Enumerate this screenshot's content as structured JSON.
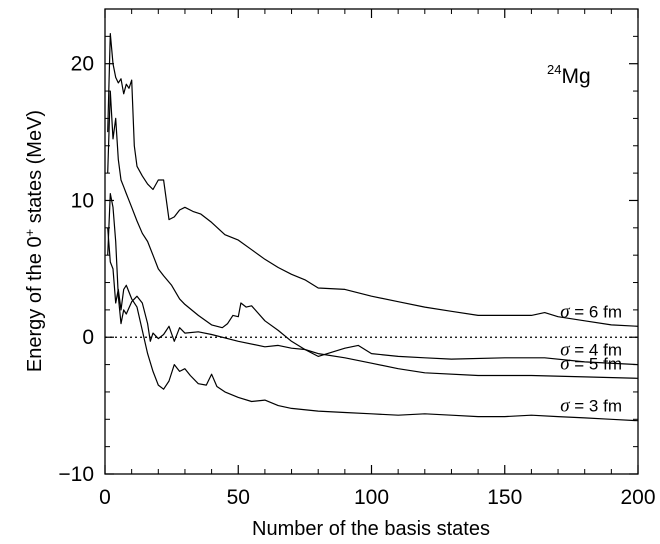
{
  "chart_data": {
    "type": "line",
    "title": "",
    "xlabel": "Number of the basis states",
    "ylabel_parts": {
      "pre": "Energy of the 0",
      "sup": "+",
      "post": " states (MeV)"
    },
    "nucleus": {
      "mass": "24",
      "symbol": "Mg"
    },
    "xlim": [
      0,
      200
    ],
    "ylim": [
      -10,
      24
    ],
    "xticks": [
      0,
      50,
      100,
      150,
      200
    ],
    "yticks": [
      -10,
      0,
      10,
      20
    ],
    "ytick_labels": [
      "−10",
      "0",
      "10",
      "20"
    ],
    "reference_line": {
      "y": 0,
      "style": "dotted"
    },
    "series": [
      {
        "name": "σ = 6 fm",
        "points": [
          [
            1,
            15
          ],
          [
            2,
            22.2
          ],
          [
            3,
            20
          ],
          [
            4,
            19
          ],
          [
            5,
            18.6
          ],
          [
            6,
            18.9
          ],
          [
            7,
            17.8
          ],
          [
            8,
            18.5
          ],
          [
            9,
            18.2
          ],
          [
            10,
            18.8
          ],
          [
            11,
            14
          ],
          [
            12,
            12.5
          ],
          [
            14,
            11.8
          ],
          [
            16,
            11.2
          ],
          [
            18,
            10.8
          ],
          [
            20,
            11.5
          ],
          [
            22,
            11.5
          ],
          [
            24,
            8.6
          ],
          [
            26,
            8.8
          ],
          [
            28,
            9.3
          ],
          [
            30,
            9.5
          ],
          [
            33,
            9.2
          ],
          [
            36,
            9
          ],
          [
            40,
            8.4
          ],
          [
            45,
            7.5
          ],
          [
            50,
            7.1
          ],
          [
            55,
            6.4
          ],
          [
            60,
            5.7
          ],
          [
            65,
            5.1
          ],
          [
            70,
            4.6
          ],
          [
            75,
            4.2
          ],
          [
            80,
            3.6
          ],
          [
            90,
            3.5
          ],
          [
            100,
            3
          ],
          [
            110,
            2.6
          ],
          [
            120,
            2.2
          ],
          [
            130,
            1.9
          ],
          [
            140,
            1.6
          ],
          [
            150,
            1.6
          ],
          [
            160,
            1.6
          ],
          [
            165,
            1.8
          ],
          [
            170,
            1.5
          ],
          [
            180,
            1.2
          ],
          [
            190,
            0.9
          ],
          [
            200,
            0.8
          ]
        ]
      },
      {
        "name": "σ = 5 fm",
        "points": [
          [
            1,
            12
          ],
          [
            2,
            18
          ],
          [
            3,
            14.5
          ],
          [
            4,
            16
          ],
          [
            5,
            13
          ],
          [
            6,
            11.5
          ],
          [
            7,
            11
          ],
          [
            8,
            10.5
          ],
          [
            10,
            9.5
          ],
          [
            12,
            8.5
          ],
          [
            14,
            7.6
          ],
          [
            16,
            7
          ],
          [
            18,
            6
          ],
          [
            20,
            5
          ],
          [
            22,
            4.5
          ],
          [
            25,
            3.8
          ],
          [
            28,
            2.8
          ],
          [
            30,
            2.4
          ],
          [
            35,
            1.6
          ],
          [
            40,
            0.9
          ],
          [
            44,
            0.7
          ],
          [
            46,
            1
          ],
          [
            48,
            1.6
          ],
          [
            50,
            1.5
          ],
          [
            51,
            2.5
          ],
          [
            53,
            2.2
          ],
          [
            55,
            2.3
          ],
          [
            60,
            1.2
          ],
          [
            65,
            0.5
          ],
          [
            70,
            -0.3
          ],
          [
            75,
            -0.9
          ],
          [
            80,
            -1.2
          ],
          [
            90,
            -1.5
          ],
          [
            100,
            -1.9
          ],
          [
            110,
            -2.3
          ],
          [
            120,
            -2.6
          ],
          [
            140,
            -2.8
          ],
          [
            160,
            -2.8
          ],
          [
            180,
            -2.9
          ],
          [
            200,
            -3
          ]
        ]
      },
      {
        "name": "σ = 4 fm",
        "points": [
          [
            1,
            6
          ],
          [
            2,
            10.5
          ],
          [
            3,
            9.5
          ],
          [
            4,
            7
          ],
          [
            5,
            3
          ],
          [
            6,
            1
          ],
          [
            7,
            2
          ],
          [
            8,
            1.7
          ],
          [
            10,
            2.6
          ],
          [
            12,
            3
          ],
          [
            14,
            2.5
          ],
          [
            16,
            1
          ],
          [
            17,
            -0.3
          ],
          [
            18,
            0.3
          ],
          [
            20,
            -0.1
          ],
          [
            22,
            0.2
          ],
          [
            24,
            0.8
          ],
          [
            26,
            -0.3
          ],
          [
            28,
            0.7
          ],
          [
            30,
            0.3
          ],
          [
            35,
            0.4
          ],
          [
            40,
            0.2
          ],
          [
            50,
            -0.3
          ],
          [
            60,
            -0.7
          ],
          [
            65,
            -0.6
          ],
          [
            70,
            -0.8
          ],
          [
            75,
            -0.9
          ],
          [
            80,
            -1.4
          ],
          [
            85,
            -1.1
          ],
          [
            90,
            -0.8
          ],
          [
            95,
            -0.6
          ],
          [
            100,
            -1.2
          ],
          [
            110,
            -1.4
          ],
          [
            120,
            -1.5
          ],
          [
            130,
            -1.6
          ],
          [
            150,
            -1.5
          ],
          [
            165,
            -1.5
          ],
          [
            180,
            -1.8
          ],
          [
            200,
            -2
          ]
        ]
      },
      {
        "name": "σ = 3 fm",
        "points": [
          [
            1,
            8
          ],
          [
            2,
            5.5
          ],
          [
            3,
            5
          ],
          [
            4,
            2.5
          ],
          [
            5,
            3.5
          ],
          [
            6,
            2
          ],
          [
            7,
            3.5
          ],
          [
            8,
            3.8
          ],
          [
            10,
            2.8
          ],
          [
            12,
            2.2
          ],
          [
            14,
            0.5
          ],
          [
            16,
            -1.2
          ],
          [
            18,
            -2.5
          ],
          [
            20,
            -3.5
          ],
          [
            22,
            -3.8
          ],
          [
            24,
            -3.2
          ],
          [
            26,
            -2
          ],
          [
            28,
            -2.5
          ],
          [
            30,
            -2.3
          ],
          [
            32,
            -2.8
          ],
          [
            35,
            -3.4
          ],
          [
            38,
            -3.5
          ],
          [
            40,
            -2.7
          ],
          [
            42,
            -3.6
          ],
          [
            45,
            -4
          ],
          [
            50,
            -4.4
          ],
          [
            55,
            -4.7
          ],
          [
            60,
            -4.6
          ],
          [
            65,
            -5
          ],
          [
            70,
            -5.2
          ],
          [
            80,
            -5.4
          ],
          [
            90,
            -5.5
          ],
          [
            100,
            -5.6
          ],
          [
            110,
            -5.7
          ],
          [
            120,
            -5.6
          ],
          [
            130,
            -5.7
          ],
          [
            140,
            -5.8
          ],
          [
            150,
            -5.8
          ],
          [
            160,
            -5.7
          ],
          [
            170,
            -5.8
          ],
          [
            180,
            -5.9
          ],
          [
            190,
            -6
          ],
          [
            200,
            -6.1
          ]
        ]
      }
    ]
  }
}
